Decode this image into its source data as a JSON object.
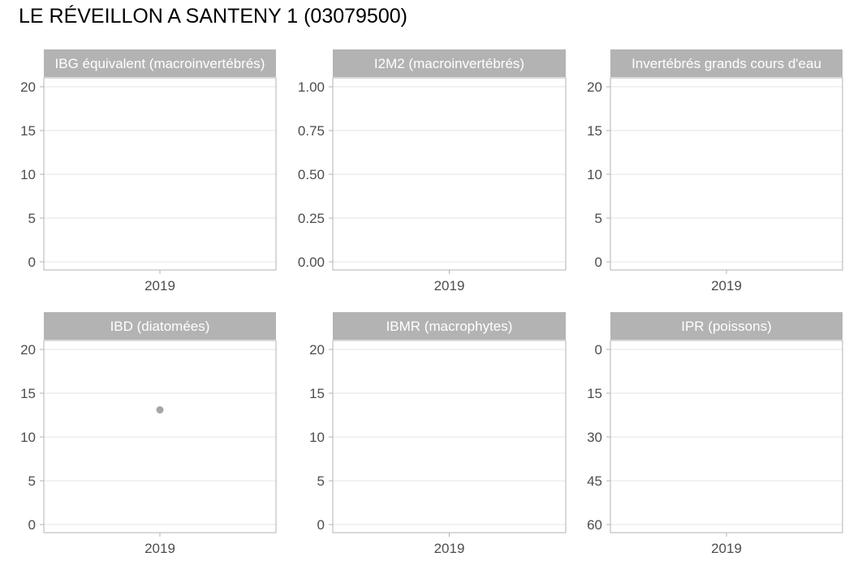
{
  "title": "LE RÉVEILLON A SANTENY 1 (03079500)",
  "chart_data": [
    {
      "type": "scatter",
      "title": "IBG équivalent (macroinvertébrés)",
      "categories": [
        "2019"
      ],
      "yticks": [
        "0",
        "5",
        "10",
        "15",
        "20"
      ],
      "ylim": [
        0,
        20
      ],
      "reversed": false,
      "points": []
    },
    {
      "type": "scatter",
      "title": "I2M2 (macroinvertébrés)",
      "categories": [
        "2019"
      ],
      "yticks": [
        "0.00",
        "0.25",
        "0.50",
        "0.75",
        "1.00"
      ],
      "ylim": [
        0,
        1
      ],
      "reversed": false,
      "points": []
    },
    {
      "type": "scatter",
      "title": "Invertébrés grands cours d'eau",
      "categories": [
        "2019"
      ],
      "yticks": [
        "0",
        "5",
        "10",
        "15",
        "20"
      ],
      "ylim": [
        0,
        20
      ],
      "reversed": false,
      "points": []
    },
    {
      "type": "scatter",
      "title": "IBD (diatomées)",
      "categories": [
        "2019"
      ],
      "yticks": [
        "0",
        "5",
        "10",
        "15",
        "20"
      ],
      "ylim": [
        0,
        20
      ],
      "reversed": false,
      "points": [
        {
          "x": "2019",
          "y": 13.1
        }
      ],
      "point_color": "#a6a6a6"
    },
    {
      "type": "scatter",
      "title": "IBMR (macrophytes)",
      "categories": [
        "2019"
      ],
      "yticks": [
        "0",
        "5",
        "10",
        "15",
        "20"
      ],
      "ylim": [
        0,
        20
      ],
      "reversed": false,
      "points": []
    },
    {
      "type": "scatter",
      "title": "IPR (poissons)",
      "categories": [
        "2019"
      ],
      "yticks": [
        "60",
        "45",
        "30",
        "15",
        "0"
      ],
      "ylim": [
        0,
        60
      ],
      "reversed": true,
      "points": []
    }
  ]
}
